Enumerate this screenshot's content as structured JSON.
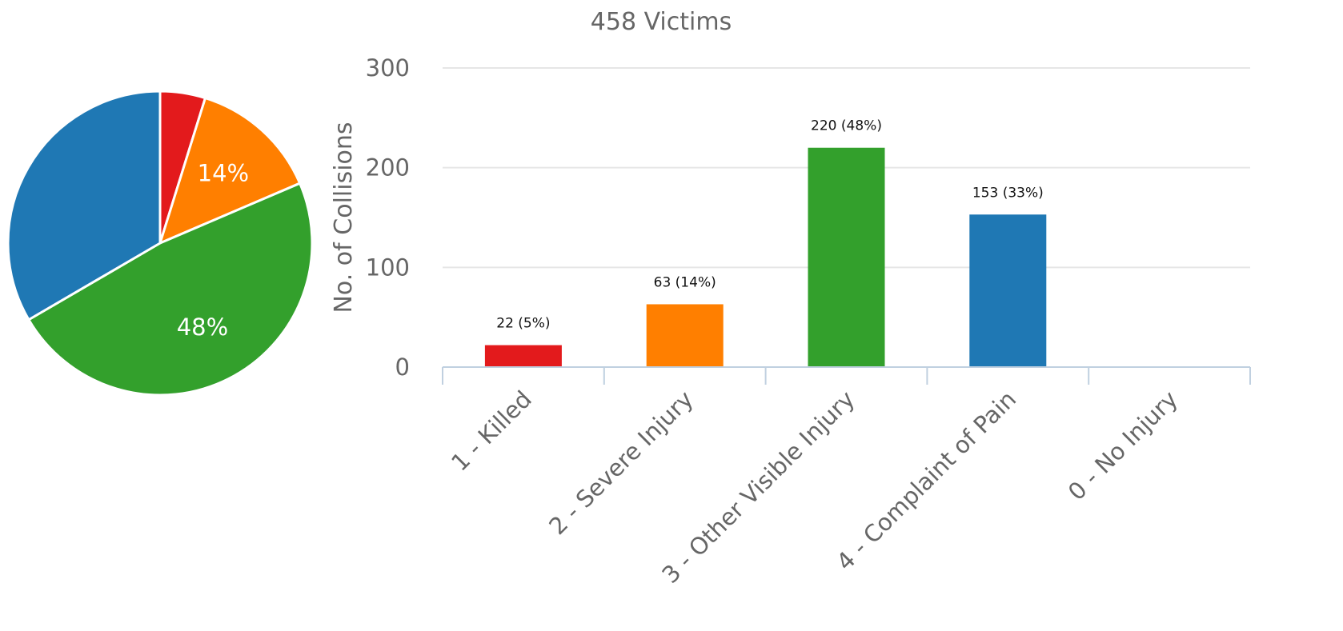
{
  "chart_data": [
    {
      "type": "pie",
      "slices": [
        {
          "category": "1 - Killed",
          "value": 22,
          "percent_label": "",
          "color": "#e31a1c"
        },
        {
          "category": "2 - Severe Injury",
          "value": 63,
          "percent_label": "14%",
          "color": "#ff7f00"
        },
        {
          "category": "3 - Other Visible Injury",
          "value": 220,
          "percent_label": "48%",
          "color": "#33a02c"
        },
        {
          "category": "4 - Complaint of Pain",
          "value": 153,
          "percent_label": "",
          "color": "#1f78b4"
        }
      ]
    },
    {
      "type": "bar",
      "title": "458 Victims",
      "ylabel": "No. of Collisions",
      "xlabel": "",
      "ylim": [
        0,
        300
      ],
      "yticks": [
        0,
        100,
        200,
        300
      ],
      "grid": true,
      "categories": [
        "1 - Killed",
        "2 - Severe Injury",
        "3 - Other Visible Injury",
        "4 - Complaint of Pain",
        "0 - No Injury"
      ],
      "values": [
        22,
        63,
        220,
        153,
        0
      ],
      "data_labels": [
        "22 (5%)",
        "63 (14%)",
        "220 (48%)",
        "153 (33%)",
        ""
      ],
      "colors": [
        "#e31a1c",
        "#ff7f00",
        "#33a02c",
        "#1f78b4",
        "#1f78b4"
      ]
    }
  ]
}
